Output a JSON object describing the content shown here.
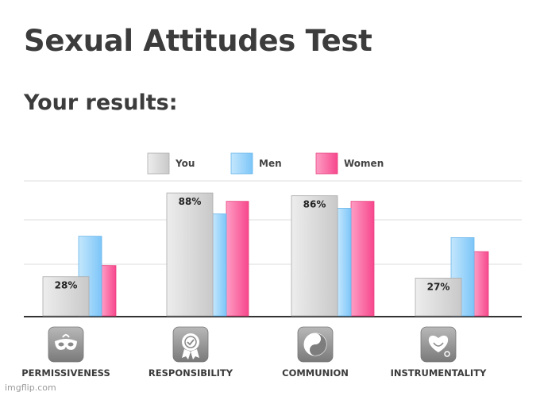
{
  "page": {
    "title": "Sexual Attitudes Test",
    "subtitle": "Your results:",
    "watermark": "imgflip.com"
  },
  "chart_data": {
    "type": "bar",
    "categories": [
      "PERMISSIVENESS",
      "RESPONSIBILITY",
      "COMMUNION",
      "INSTRUMENTALITY"
    ],
    "series": [
      {
        "name": "You",
        "values": [
          28,
          88,
          86,
          27
        ],
        "labels": [
          "28%",
          "88%",
          "86%",
          "27%"
        ]
      },
      {
        "name": "Men",
        "values": [
          57,
          73,
          77,
          56
        ]
      },
      {
        "name": "Women",
        "values": [
          36,
          82,
          82,
          46
        ]
      }
    ],
    "ylim": [
      0,
      100
    ],
    "grid": true,
    "legend": "top-center",
    "colors": {
      "You": "#dcdcdc",
      "Men": "#9fd6fb",
      "Women": "#fc6fa5"
    },
    "category_icons": [
      "mask-icon",
      "award-ribbon-icon",
      "yin-yang-icon",
      "heart-stethoscope-icon"
    ]
  }
}
